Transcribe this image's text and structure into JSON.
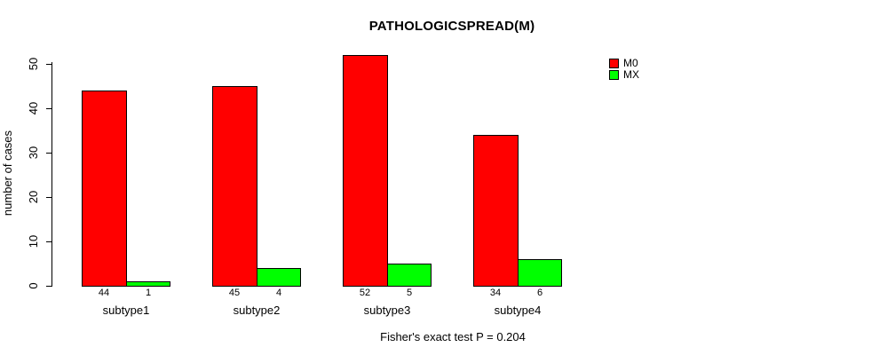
{
  "chart_data": {
    "type": "bar",
    "title": "PATHOLOGICSPREAD(M)",
    "ylabel": "number of cases",
    "xlabel": "",
    "categories": [
      "subtype1",
      "subtype2",
      "subtype3",
      "subtype4"
    ],
    "series": [
      {
        "name": "M0",
        "color": "#ff0000",
        "values": [
          44,
          45,
          52,
          34
        ]
      },
      {
        "name": "MX",
        "color": "#00ff00",
        "values": [
          1,
          4,
          5,
          6
        ]
      }
    ],
    "values_shown_below_bars": true,
    "yticks": [
      0,
      10,
      20,
      30,
      40,
      50
    ],
    "ylim": [
      0,
      55
    ],
    "grid": false,
    "legend_position": "top-right",
    "caption": "Fisher's exact test P = 0.204",
    "colors": {
      "background": "#ffffff",
      "axis": "#000000",
      "text": "#000000"
    }
  }
}
